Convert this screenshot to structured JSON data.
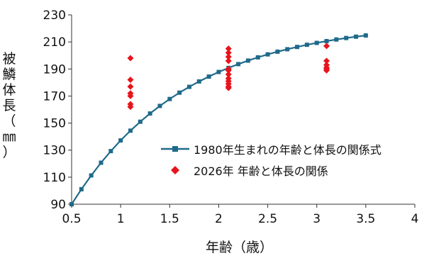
{
  "chart_data": {
    "type": "line",
    "xlabel": "年齢（歳）",
    "ylabel": "被鱗体長（㎜）",
    "xlim": [
      0.5,
      4
    ],
    "ylim": [
      90,
      230
    ],
    "xticks": [
      "0.5",
      "1",
      "1.5",
      "2",
      "2.5",
      "3",
      "3.5",
      "4"
    ],
    "yticks": [
      "90",
      "110",
      "130",
      "150",
      "170",
      "190",
      "210",
      "230"
    ],
    "grid": false,
    "legend_position": "lower-right",
    "series": [
      {
        "name": "1980年生まれの年齢と体長の関係式",
        "type": "line",
        "color": "#1f6a8a",
        "marker": "square",
        "x": [
          0.5,
          0.6,
          0.7,
          0.8,
          0.9,
          1.0,
          1.1,
          1.2,
          1.3,
          1.4,
          1.5,
          1.6,
          1.7,
          1.8,
          1.9,
          2.0,
          2.1,
          2.2,
          2.3,
          2.4,
          2.5,
          2.6,
          2.7,
          2.8,
          2.9,
          3.0,
          3.1,
          3.2,
          3.3,
          3.4,
          3.5
        ],
        "y": [
          90.0,
          101.1,
          111.3,
          120.7,
          129.3,
          137.2,
          144.4,
          151.0,
          157.1,
          162.7,
          167.8,
          172.5,
          176.8,
          180.8,
          184.4,
          187.8,
          190.8,
          193.6,
          196.2,
          198.6,
          200.8,
          202.8,
          204.6,
          206.3,
          207.9,
          209.3,
          210.6,
          211.8,
          212.9,
          213.9,
          214.8
        ]
      },
      {
        "name": "2026年 年齢と体長の関係",
        "type": "scatter",
        "color": "#e8141c",
        "marker": "diamond",
        "x": [
          1.1,
          1.1,
          1.1,
          1.1,
          1.1,
          1.1,
          1.1,
          2.1,
          2.1,
          2.1,
          2.1,
          2.1,
          2.1,
          2.1,
          2.1,
          2.1,
          2.1,
          2.1,
          2.1,
          3.1,
          3.1,
          3.1,
          3.1,
          3.1,
          3.1
        ],
        "y": [
          198,
          182,
          177,
          172,
          170,
          164,
          162,
          205,
          202,
          199,
          196,
          190,
          189,
          186,
          183,
          181,
          179,
          177,
          176,
          207,
          196,
          193,
          191,
          190,
          189
        ]
      }
    ]
  }
}
